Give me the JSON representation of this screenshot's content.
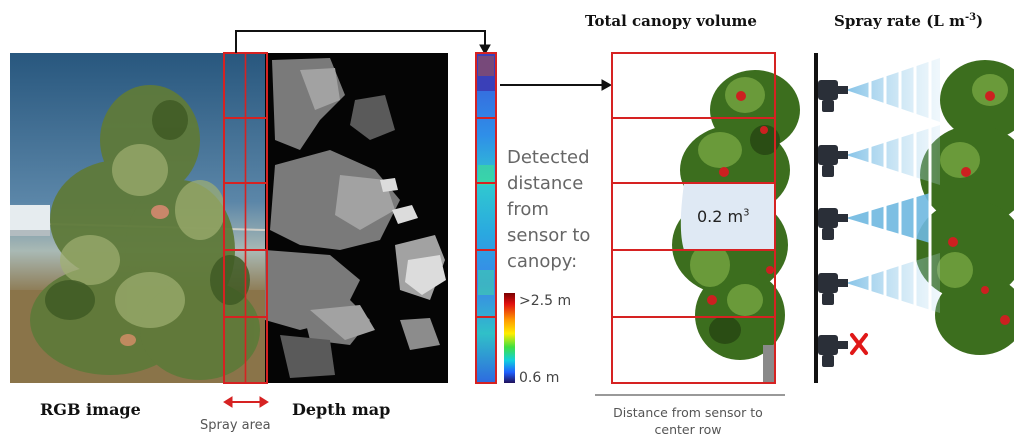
{
  "titles": {
    "canopy_volume": "Total canopy volume",
    "spray_rate_prefix": "Spray rate (L m",
    "spray_rate_exp": "-3",
    "spray_rate_suffix": ")"
  },
  "panels": {
    "rgb_label": "RGB image",
    "depth_label": "Depth map",
    "spray_area_label": "Spray area"
  },
  "detected": {
    "lines": [
      "Detected",
      "distance",
      "from",
      "sensor to",
      "canopy:"
    ],
    "legend_max": ">2.5 m",
    "legend_min": "0.6 m"
  },
  "volume": {
    "value": "0.2 m",
    "exp": "3"
  },
  "axis": {
    "distance_label_line1": "Distance from sensor to",
    "distance_label_line2": "center row"
  },
  "colors": {
    "grid_red": "#d62222",
    "spray_blue": "#6fb8e0",
    "apple_red": "#cc2020",
    "foliage_green": "#3c6e1e"
  },
  "icons": [
    "arrow-icon",
    "nozzle-icon",
    "apple-icon",
    "cross-icon"
  ]
}
